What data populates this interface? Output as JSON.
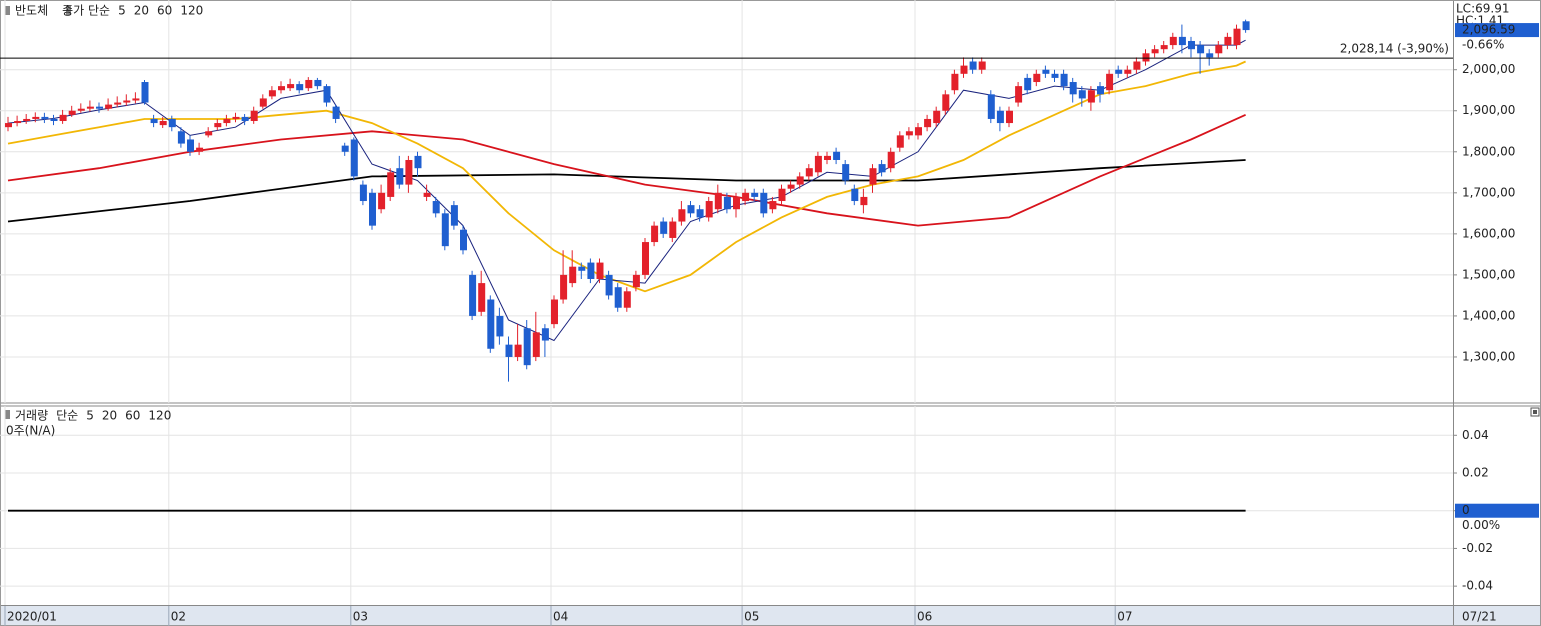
{
  "chart_data": [
    {
      "type": "candlestick",
      "title": "반도체",
      "legend_prefix": "종가 단순",
      "categories": [
        "2020/01",
        null,
        null,
        null,
        null,
        null,
        null,
        null,
        null,
        null,
        null,
        null,
        null,
        null,
        null,
        null,
        null,
        null,
        "02",
        null,
        null,
        null,
        null,
        null,
        null,
        null,
        null,
        null,
        null,
        null,
        null,
        null,
        null,
        null,
        null,
        null,
        null,
        null,
        "03",
        null,
        null,
        null,
        null,
        null,
        null,
        null,
        null,
        null,
        null,
        null,
        null,
        null,
        null,
        null,
        null,
        null,
        null,
        null,
        null,
        null,
        "04",
        null,
        null,
        null,
        null,
        null,
        null,
        null,
        null,
        null,
        null,
        null,
        null,
        null,
        null,
        null,
        null,
        null,
        null,
        null,
        null,
        "05",
        null,
        null,
        null,
        null,
        null,
        null,
        null,
        null,
        null,
        null,
        null,
        null,
        null,
        null,
        null,
        null,
        null,
        null,
        "06",
        null,
        null,
        null,
        null,
        null,
        null,
        null,
        null,
        null,
        null,
        null,
        null,
        null,
        null,
        null,
        null,
        null,
        null,
        null,
        null,
        null,
        "07",
        null,
        null,
        null,
        null,
        null,
        null,
        null,
        null,
        null,
        null,
        null,
        null,
        null,
        null
      ],
      "x_end_label": "07/21",
      "open": [
        1860,
        1870,
        1875,
        1880,
        1885,
        1880,
        1875,
        1890,
        1900,
        1905,
        1910,
        1905,
        1915,
        1920,
        1925,
        1970,
        1880,
        1865,
        1880,
        1850,
        1830,
        1800,
        1840,
        1860,
        1870,
        1880,
        1885,
        1875,
        1910,
        1935,
        1950,
        1955,
        1965,
        1955,
        1975,
        1960,
        1910,
        1815,
        1830,
        1720,
        1700,
        1660,
        1690,
        1760,
        1720,
        1790,
        1690,
        1680,
        1650,
        1670,
        1610,
        1500,
        1410,
        1440,
        1400,
        1330,
        1300,
        1370,
        1300,
        1370,
        1380,
        1440,
        1480,
        1520,
        1530,
        1490,
        1500,
        1470,
        1420,
        1470,
        1500,
        1580,
        1630,
        1590,
        1630,
        1670,
        1660,
        1640,
        1660,
        1690,
        1660,
        1680,
        1700,
        1700,
        1660,
        1680,
        1710,
        1720,
        1740,
        1750,
        1780,
        1800,
        1770,
        1710,
        1670,
        1720,
        1770,
        1760,
        1810,
        1840,
        1840,
        1860,
        1870,
        1900,
        1950,
        1990,
        2020,
        2000,
        1940,
        1900,
        1870,
        1920,
        1980,
        1970,
        2000,
        1990,
        1990,
        1970,
        1950,
        1920,
        1960,
        1950,
        2000,
        1990,
        2000,
        2020,
        2040,
        2050,
        2060,
        2080,
        2070,
        2060,
        2040,
        2040,
        2060,
        2060,
        2118
      ],
      "high": [
        1885,
        1888,
        1892,
        1896,
        1895,
        1890,
        1902,
        1912,
        1918,
        1925,
        1920,
        1930,
        1935,
        1940,
        1945,
        1975,
        1890,
        1885,
        1888,
        1860,
        1840,
        1822,
        1860,
        1880,
        1890,
        1895,
        1892,
        1910,
        1940,
        1960,
        1972,
        1978,
        1972,
        1982,
        1980,
        1965,
        1915,
        1822,
        1835,
        1730,
        1710,
        1720,
        1760,
        1790,
        1790,
        1800,
        1720,
        1690,
        1660,
        1680,
        1620,
        1510,
        1510,
        1450,
        1420,
        1350,
        1380,
        1390,
        1410,
        1380,
        1450,
        1560,
        1560,
        1530,
        1540,
        1540,
        1510,
        1480,
        1470,
        1510,
        1590,
        1630,
        1640,
        1640,
        1680,
        1680,
        1670,
        1690,
        1720,
        1700,
        1700,
        1710,
        1710,
        1710,
        1690,
        1720,
        1730,
        1750,
        1770,
        1800,
        1800,
        1810,
        1780,
        1720,
        1710,
        1770,
        1780,
        1810,
        1850,
        1860,
        1870,
        1890,
        1910,
        1950,
        2000,
        2030,
        2030,
        2030,
        1950,
        1910,
        1910,
        1970,
        1990,
        2000,
        2010,
        2000,
        2000,
        1980,
        1960,
        1960,
        1970,
        2000,
        2010,
        2010,
        2030,
        2050,
        2060,
        2070,
        2090,
        2110,
        2080,
        2070,
        2050,
        2070,
        2090,
        2110,
        2122
      ],
      "low": [
        1850,
        1862,
        1868,
        1872,
        1870,
        1865,
        1868,
        1885,
        1895,
        1898,
        1895,
        1900,
        1908,
        1912,
        1918,
        1915,
        1860,
        1858,
        1850,
        1810,
        1790,
        1792,
        1835,
        1852,
        1862,
        1872,
        1865,
        1868,
        1905,
        1928,
        1942,
        1948,
        1942,
        1948,
        1952,
        1910,
        1870,
        1790,
        1730,
        1670,
        1610,
        1650,
        1680,
        1710,
        1700,
        1740,
        1680,
        1640,
        1560,
        1610,
        1550,
        1390,
        1400,
        1310,
        1330,
        1240,
        1290,
        1270,
        1290,
        1300,
        1370,
        1430,
        1470,
        1490,
        1480,
        1480,
        1440,
        1410,
        1410,
        1460,
        1490,
        1570,
        1590,
        1580,
        1620,
        1640,
        1630,
        1630,
        1650,
        1650,
        1640,
        1670,
        1680,
        1640,
        1650,
        1670,
        1700,
        1710,
        1730,
        1740,
        1770,
        1770,
        1720,
        1670,
        1650,
        1700,
        1740,
        1750,
        1800,
        1830,
        1830,
        1850,
        1860,
        1890,
        1940,
        1980,
        1990,
        1990,
        1870,
        1850,
        1860,
        1910,
        1940,
        1960,
        1980,
        1970,
        1950,
        1920,
        1910,
        1900,
        1920,
        1940,
        1980,
        1980,
        1990,
        2010,
        2030,
        2040,
        2050,
        2040,
        2030,
        1990,
        2010,
        2030,
        2050,
        2050,
        2090
      ],
      "close": [
        1870,
        1875,
        1880,
        1885,
        1880,
        1875,
        1890,
        1900,
        1905,
        1910,
        1905,
        1915,
        1920,
        1925,
        1930,
        1920,
        1870,
        1875,
        1860,
        1820,
        1800,
        1810,
        1850,
        1870,
        1880,
        1885,
        1875,
        1900,
        1930,
        1950,
        1960,
        1965,
        1950,
        1975,
        1960,
        1920,
        1880,
        1800,
        1740,
        1680,
        1620,
        1700,
        1750,
        1720,
        1780,
        1760,
        1700,
        1650,
        1570,
        1620,
        1560,
        1400,
        1480,
        1320,
        1350,
        1300,
        1330,
        1280,
        1360,
        1340,
        1440,
        1500,
        1520,
        1510,
        1490,
        1530,
        1450,
        1420,
        1460,
        1500,
        1580,
        1620,
        1600,
        1630,
        1660,
        1650,
        1640,
        1680,
        1700,
        1660,
        1690,
        1700,
        1690,
        1650,
        1680,
        1710,
        1720,
        1740,
        1760,
        1790,
        1790,
        1780,
        1730,
        1680,
        1690,
        1760,
        1750,
        1800,
        1840,
        1850,
        1860,
        1880,
        1900,
        1940,
        1990,
        2010,
        2000,
        2020,
        1880,
        1870,
        1900,
        1960,
        1950,
        1990,
        1990,
        1980,
        1960,
        1940,
        1930,
        1950,
        1940,
        1990,
        1990,
        2000,
        2020,
        2040,
        2050,
        2060,
        2080,
        2060,
        2050,
        2040,
        2030,
        2060,
        2080,
        2100,
        2096.59
      ],
      "up_color": "#e3212b",
      "down_color": "#1f5fd0",
      "series": [
        {
          "name": "5",
          "color": "#1a237e",
          "x": [
            0,
            5,
            10,
            15,
            20,
            25,
            30,
            35,
            40,
            45,
            50,
            55,
            60,
            65,
            70,
            75,
            80,
            85,
            90,
            95,
            100,
            105,
            110,
            115,
            120,
            125,
            130,
            135,
            136
          ],
          "values": [
            1870,
            1881,
            1902,
            1920,
            1840,
            1860,
            1930,
            1950,
            1770,
            1730,
            1620,
            1390,
            1340,
            1490,
            1480,
            1630,
            1670,
            1690,
            1750,
            1740,
            1800,
            1950,
            1930,
            1960,
            1950,
            2000,
            2060,
            2060,
            2072
          ]
        },
        {
          "name": "20",
          "color": "#f2b705",
          "x": [
            0,
            5,
            10,
            15,
            20,
            25,
            30,
            35,
            40,
            45,
            50,
            55,
            60,
            65,
            70,
            75,
            80,
            85,
            90,
            95,
            100,
            105,
            110,
            115,
            120,
            125,
            130,
            135,
            136
          ],
          "values": [
            1820,
            1840,
            1860,
            1880,
            1880,
            1880,
            1890,
            1900,
            1870,
            1820,
            1760,
            1650,
            1560,
            1500,
            1460,
            1500,
            1580,
            1640,
            1690,
            1720,
            1740,
            1780,
            1840,
            1890,
            1940,
            1960,
            1990,
            2010,
            2020
          ]
        },
        {
          "name": "60",
          "color": "#d8131c",
          "x": [
            0,
            10,
            20,
            30,
            40,
            50,
            60,
            70,
            80,
            90,
            100,
            110,
            120,
            130,
            136
          ],
          "values": [
            1730,
            1760,
            1800,
            1830,
            1850,
            1830,
            1770,
            1720,
            1690,
            1650,
            1620,
            1640,
            1740,
            1830,
            1890
          ]
        },
        {
          "name": "120",
          "color": "#000000",
          "x": [
            0,
            20,
            40,
            60,
            80,
            100,
            120,
            136
          ],
          "values": [
            1630,
            1680,
            1740,
            1745,
            1730,
            1730,
            1760,
            1780
          ]
        }
      ],
      "ylim": [
        1200,
        2165
      ],
      "yticks": [
        {
          "value": 1300,
          "label": "1,300,00"
        },
        {
          "value": 1400,
          "label": "1,400,00"
        },
        {
          "value": 1500,
          "label": "1,500,00"
        },
        {
          "value": 1600,
          "label": "1,600,00"
        },
        {
          "value": 1700,
          "label": "1,700,00"
        },
        {
          "value": 1800,
          "label": "1,800,00"
        },
        {
          "value": 1900,
          "label": "1,900,00"
        },
        {
          "value": 2000,
          "label": "2,000,00"
        }
      ],
      "grid": true,
      "reference": {
        "value": 2028.14,
        "label": "2,028,14 (-3,90%)"
      },
      "last": {
        "value": 2096.59,
        "label": "2,096.59"
      },
      "change": "-0.66%",
      "lc_label": "LC:69.91",
      "hc_label": "HC:1.41"
    },
    {
      "type": "line",
      "title": "거래량",
      "legend_prefix": "단순",
      "note": "0주(N/A)",
      "ma_legend": [
        {
          "name": "5",
          "color": "#1a237e"
        },
        {
          "name": "20",
          "color": "#d8131c"
        },
        {
          "name": "60",
          "color": "#1c8a2e"
        },
        {
          "name": "120",
          "color": "#000000"
        }
      ],
      "series": [
        {
          "name": "거래량",
          "color": "#000000",
          "x": [
            0,
            136
          ],
          "values": [
            0,
            0
          ]
        }
      ],
      "ylim": [
        -0.05,
        0.055
      ],
      "yticks": [
        -0.04,
        -0.02,
        0,
        0.02,
        0.04
      ],
      "grid": true,
      "last_value": 0,
      "change": "0.00%"
    }
  ]
}
